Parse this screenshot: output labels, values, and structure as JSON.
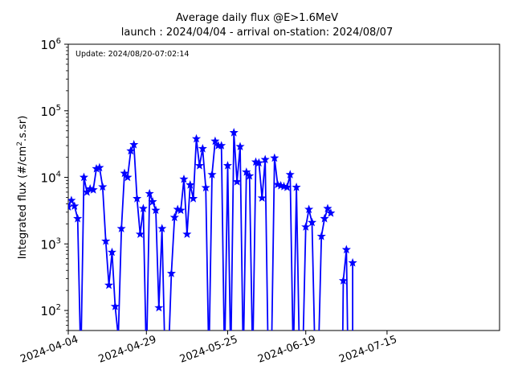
{
  "chart_data": {
    "type": "line",
    "title": "Average daily flux @E>1.6MeV",
    "subtitle": "launch : 2024/04/04 - arrival on-station: 2024/08/07",
    "annotation": "Update: 2024/08/20-07:02:14",
    "xlabel": "",
    "ylabel": "Integrated flux (#/cm².s.sr)",
    "ylabel_parts": {
      "before": "Integrated flux (#/cm",
      "sup": "2",
      "after": ".s.sr)"
    },
    "y_scale": "log",
    "ylim": [
      50,
      1000000
    ],
    "xlim": [
      "2024-04-04",
      "2024-08-20"
    ],
    "grid": false,
    "line_color": "#0000ff",
    "marker": "star",
    "x_ticks": [
      "2024-04-04",
      "2024-04-29",
      "2024-05-25",
      "2024-06-19",
      "2024-07-15"
    ],
    "y_ticks": [
      {
        "value": 100,
        "base": "10",
        "exp": "2"
      },
      {
        "value": 1000,
        "base": "10",
        "exp": "3"
      },
      {
        "value": 10000,
        "base": "10",
        "exp": "4"
      },
      {
        "value": 100000,
        "base": "10",
        "exp": "5"
      },
      {
        "value": 1000000,
        "base": "10",
        "exp": "6"
      }
    ],
    "series": [
      {
        "x": [
          "2024-04-04",
          "2024-04-05",
          "2024-04-06",
          "2024-04-07",
          "2024-04-08",
          "2024-04-09",
          "2024-04-10",
          "2024-04-11",
          "2024-04-12",
          "2024-04-13",
          "2024-04-14",
          "2024-04-15",
          "2024-04-16",
          "2024-04-17",
          "2024-04-18",
          "2024-04-19",
          "2024-04-20",
          "2024-04-21",
          "2024-04-22",
          "2024-04-23",
          "2024-04-24",
          "2024-04-25",
          "2024-04-26",
          "2024-04-27",
          "2024-04-28",
          "2024-04-29",
          "2024-04-30",
          "2024-05-01",
          "2024-05-02",
          "2024-05-03",
          "2024-05-04",
          "2024-05-05",
          "2024-05-06",
          "2024-05-07",
          "2024-05-08",
          "2024-05-09",
          "2024-05-10",
          "2024-05-11",
          "2024-05-12",
          "2024-05-13",
          "2024-05-14",
          "2024-05-15",
          "2024-05-16",
          "2024-05-17",
          "2024-05-18",
          "2024-05-19",
          "2024-05-20",
          "2024-05-21",
          "2024-05-22",
          "2024-05-23",
          "2024-05-24",
          "2024-05-25",
          "2024-05-26",
          "2024-05-27",
          "2024-05-28",
          "2024-05-29",
          "2024-05-30",
          "2024-05-31",
          "2024-06-01",
          "2024-06-02",
          "2024-06-03",
          "2024-06-04",
          "2024-06-05",
          "2024-06-06",
          "2024-06-07",
          "2024-06-08",
          "2024-06-09",
          "2024-06-10",
          "2024-06-11",
          "2024-06-12",
          "2024-06-13",
          "2024-06-14",
          "2024-06-15",
          "2024-06-16",
          "2024-06-17",
          "2024-06-18",
          "2024-06-19",
          "2024-06-20",
          "2024-06-21",
          "2024-06-22",
          "2024-06-23",
          "2024-06-24",
          "2024-06-25",
          "2024-06-26",
          "2024-06-27",
          "2024-06-28",
          "2024-06-29",
          "2024-06-30",
          "2024-07-01",
          "2024-07-02",
          "2024-07-03",
          "2024-07-04"
        ],
        "y": [
          3600,
          4500,
          3700,
          2400,
          null,
          10000,
          6000,
          6700,
          6500,
          13500,
          14000,
          7200,
          1100,
          240,
          750,
          115,
          40,
          1700,
          11500,
          10000,
          25000,
          31000,
          4800,
          1400,
          3400,
          null,
          5700,
          4300,
          3200,
          110,
          1700,
          null,
          null,
          360,
          2500,
          3300,
          3200,
          9400,
          1400,
          7700,
          4800,
          38000,
          15000,
          27000,
          7000,
          null,
          11000,
          35000,
          30000,
          30000,
          null,
          15000,
          null,
          47000,
          8600,
          29000,
          null,
          12000,
          10500,
          null,
          17000,
          16500,
          4900,
          18500,
          null,
          null,
          19500,
          7800,
          7500,
          7300,
          7100,
          11000,
          null,
          7100,
          null,
          null,
          1800,
          3300,
          2100,
          null,
          null,
          1300,
          2400,
          3400,
          2900,
          null,
          null,
          null,
          null,
          null,
          null,
          null
        ],
        "y_tail": [
          280,
          820,
          520
        ],
        "x_tail": [
          "2024-07-01",
          "2024-07-02",
          "2024-07-04"
        ]
      }
    ]
  }
}
